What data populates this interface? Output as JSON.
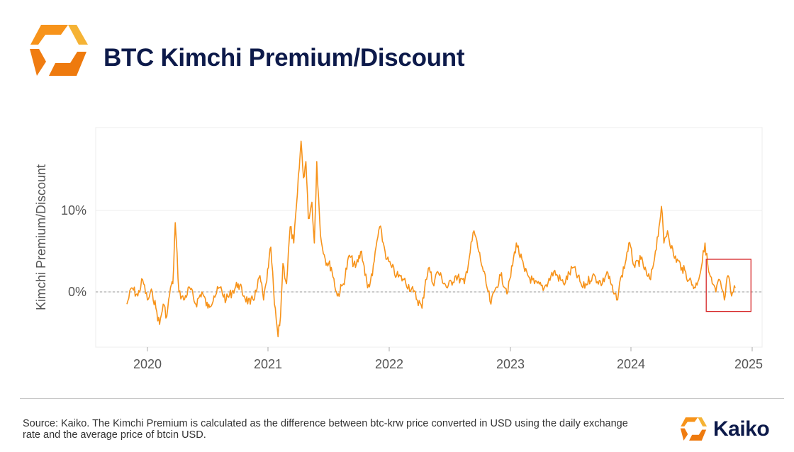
{
  "header": {
    "title": "BTC Kimchi Premium/Discount"
  },
  "colors": {
    "line": "#f7931a",
    "title": "#0d1a4a",
    "highlight": "#d62728",
    "zero_line": "#9a9a9a",
    "grid": "#ececec"
  },
  "chart_data": {
    "type": "line",
    "title": "BTC Kimchi Premium/Discount",
    "xlabel": "",
    "ylabel": "Kimchi Premium/Discount",
    "x_ticks": [
      "2020",
      "2021",
      "2022",
      "2023",
      "2024",
      "2025"
    ],
    "y_ticks": [
      "0%",
      "10%"
    ],
    "x_range": [
      2019.55,
      2025.1
    ],
    "ylim": [
      -6.5,
      20
    ],
    "grid": "horizontal",
    "reference_line": 0,
    "series": [
      {
        "name": "Kimchi Premium/Discount (%)",
        "x": [
          2019.83,
          2019.87,
          2019.92,
          2019.96,
          2020.0,
          2020.04,
          2020.07,
          2020.1,
          2020.13,
          2020.16,
          2020.19,
          2020.21,
          2020.23,
          2020.26,
          2020.3,
          2020.35,
          2020.4,
          2020.45,
          2020.5,
          2020.55,
          2020.6,
          2020.65,
          2020.7,
          2020.75,
          2020.8,
          2020.85,
          2020.9,
          2020.93,
          2020.96,
          2020.98,
          2021.0,
          2021.02,
          2021.05,
          2021.08,
          2021.1,
          2021.12,
          2021.15,
          2021.18,
          2021.21,
          2021.24,
          2021.27,
          2021.29,
          2021.31,
          2021.33,
          2021.36,
          2021.38,
          2021.4,
          2021.43,
          2021.47,
          2021.52,
          2021.57,
          2021.62,
          2021.67,
          2021.72,
          2021.77,
          2021.82,
          2021.86,
          2021.89,
          2021.92,
          2021.95,
          2021.98,
          2022.02,
          2022.06,
          2022.12,
          2022.2,
          2022.27,
          2022.3,
          2022.33,
          2022.36,
          2022.4,
          2022.48,
          2022.55,
          2022.62,
          2022.7,
          2022.77,
          2022.8,
          2022.84,
          2022.88,
          2022.92,
          2022.98,
          2023.05,
          2023.12,
          2023.2,
          2023.28,
          2023.36,
          2023.44,
          2023.52,
          2023.6,
          2023.68,
          2023.76,
          2023.8,
          2023.85,
          2023.88,
          2023.92,
          2023.95,
          2023.98,
          2024.03,
          2024.08,
          2024.13,
          2024.16,
          2024.2,
          2024.23,
          2024.25,
          2024.27,
          2024.3,
          2024.35,
          2024.42,
          2024.48,
          2024.53,
          2024.58,
          2024.61,
          2024.64,
          2024.67,
          2024.7,
          2024.73,
          2024.77,
          2024.8,
          2024.83,
          2024.86
        ],
        "values": [
          -1.5,
          0.5,
          -0.5,
          1.5,
          -1.0,
          0.0,
          -2.0,
          -4.0,
          -1.5,
          -3.0,
          0.5,
          1.0,
          8.5,
          0.0,
          -1.0,
          0.5,
          -1.5,
          0.0,
          -2.0,
          -0.5,
          0.5,
          -1.0,
          0.0,
          1.0,
          -0.5,
          -1.5,
          0.0,
          2.0,
          -1.0,
          1.0,
          3.0,
          5.5,
          -1.5,
          -5.5,
          -3.0,
          3.5,
          1.0,
          8.0,
          6.0,
          12.0,
          18.5,
          14.0,
          16.0,
          9.0,
          11.0,
          6.0,
          16.0,
          7.0,
          4.0,
          3.0,
          -0.5,
          1.0,
          4.5,
          3.0,
          5.0,
          0.5,
          2.0,
          5.5,
          8.0,
          6.0,
          4.0,
          3.0,
          2.0,
          1.5,
          0.0,
          -2.0,
          1.5,
          3.0,
          1.0,
          2.5,
          0.5,
          2.0,
          1.0,
          7.5,
          3.0,
          1.0,
          -1.5,
          0.5,
          2.0,
          0.0,
          6.0,
          2.5,
          1.0,
          0.5,
          2.5,
          1.0,
          3.0,
          0.5,
          2.0,
          1.0,
          2.5,
          0.0,
          -1.0,
          2.0,
          3.5,
          6.0,
          3.0,
          4.0,
          2.0,
          1.5,
          5.0,
          8.0,
          10.5,
          6.0,
          7.5,
          4.5,
          3.0,
          1.5,
          0.5,
          3.0,
          6.0,
          2.5,
          1.0,
          0.0,
          1.5,
          -1.0,
          2.0,
          -0.5,
          0.5
        ]
      }
    ],
    "highlight_range": {
      "x": [
        2024.62,
        2024.99
      ],
      "y": [
        -2.4,
        4.0
      ]
    }
  },
  "footer": {
    "source_text": "Source: Kaiko. The Kimchi Premium is calculated as the difference between btc-krw price converted in USD using the daily exchange rate and the average price of btcin USD.",
    "brand_name": "Kaiko"
  }
}
